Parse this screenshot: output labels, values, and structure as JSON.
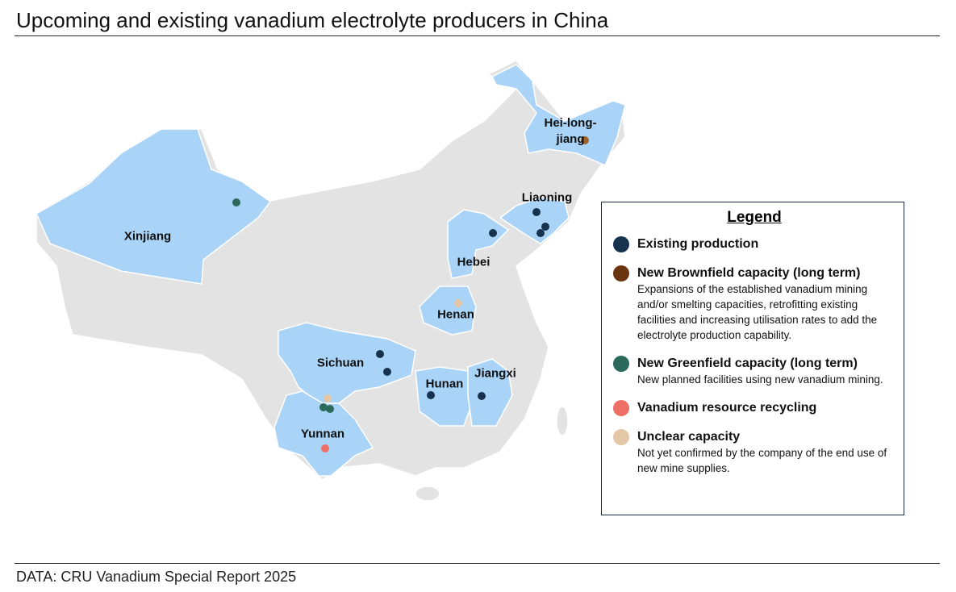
{
  "title": "Upcoming and existing vanadium electrolyte producers in China",
  "source": "DATA: CRU Vanadium Special Report 2025",
  "map": {
    "provinces": [
      "Xinjiang",
      "Hei-long-jiang",
      "Liaoning",
      "Hebei",
      "Henan",
      "Sichuan",
      "Hunan",
      "Jiangxi",
      "Yunnan"
    ]
  },
  "legend": {
    "title": "Legend",
    "items": [
      {
        "label": "Existing production",
        "color": "#17324d"
      },
      {
        "label": "New Brownfield capacity (long term)",
        "color": "#6b3410",
        "description": "Expansions of the established vanadium mining and/or smelting capacities, retrofitting existing facilities and increasing utilisation rates to add the electrolyte production capability."
      },
      {
        "label": "New Greenfield capacity (long term)",
        "color": "#2b6a5b",
        "description": "New planned facilities using new vanadium mining."
      },
      {
        "label": "Vanadium resource recycling",
        "color": "#ee6f66"
      },
      {
        "label": "Unclear capacity",
        "color": "#e4c7a6",
        "description": "Not yet confirmed by the company of the end use of new mine supplies."
      }
    ]
  }
}
